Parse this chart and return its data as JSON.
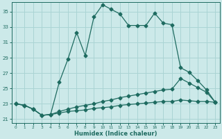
{
  "title": "",
  "xlabel": "Humidex (Indice chaleur)",
  "bg_color": "#cce9e9",
  "grid_color": "#aad4d4",
  "line_color": "#1e6b60",
  "xlim": [
    -0.5,
    23.5
  ],
  "ylim": [
    20.5,
    36.2
  ],
  "yticks": [
    21,
    23,
    25,
    27,
    29,
    31,
    33,
    35
  ],
  "xticks": [
    0,
    1,
    2,
    3,
    4,
    5,
    6,
    7,
    8,
    9,
    10,
    11,
    12,
    13,
    14,
    15,
    16,
    17,
    18,
    19,
    20,
    21,
    22,
    23
  ],
  "curve1_x": [
    0,
    1,
    2,
    3,
    4,
    5,
    6,
    7,
    8,
    9,
    10,
    11,
    12,
    13,
    14,
    15,
    16,
    17,
    18,
    19,
    20,
    21,
    22,
    23
  ],
  "curve1_y": [
    23.0,
    22.8,
    22.3,
    21.5,
    21.6,
    25.8,
    28.8,
    32.3,
    29.3,
    34.3,
    35.9,
    35.3,
    34.7,
    33.2,
    33.2,
    33.2,
    34.8,
    33.5,
    33.3,
    27.7,
    27.1,
    26.0,
    24.8,
    23.2
  ],
  "curve2_x": [
    0,
    1,
    2,
    3,
    4,
    5,
    6,
    7,
    8,
    9,
    10,
    11,
    12,
    13,
    14,
    15,
    16,
    17,
    18,
    19,
    20,
    21,
    22,
    23
  ],
  "curve2_y": [
    23.0,
    22.8,
    22.3,
    21.5,
    21.6,
    22.0,
    22.3,
    22.6,
    22.8,
    23.0,
    23.3,
    23.5,
    23.8,
    24.0,
    24.2,
    24.4,
    24.6,
    24.8,
    24.9,
    26.3,
    25.7,
    25.1,
    24.5,
    23.2
  ],
  "curve3_x": [
    0,
    1,
    2,
    3,
    4,
    5,
    6,
    7,
    8,
    9,
    10,
    11,
    12,
    13,
    14,
    15,
    16,
    17,
    18,
    19,
    20,
    21,
    22,
    23
  ],
  "curve3_y": [
    23.0,
    22.8,
    22.3,
    21.5,
    21.6,
    21.8,
    22.0,
    22.1,
    22.2,
    22.4,
    22.5,
    22.6,
    22.8,
    22.9,
    23.0,
    23.1,
    23.2,
    23.3,
    23.3,
    23.5,
    23.4,
    23.3,
    23.3,
    23.2
  ]
}
